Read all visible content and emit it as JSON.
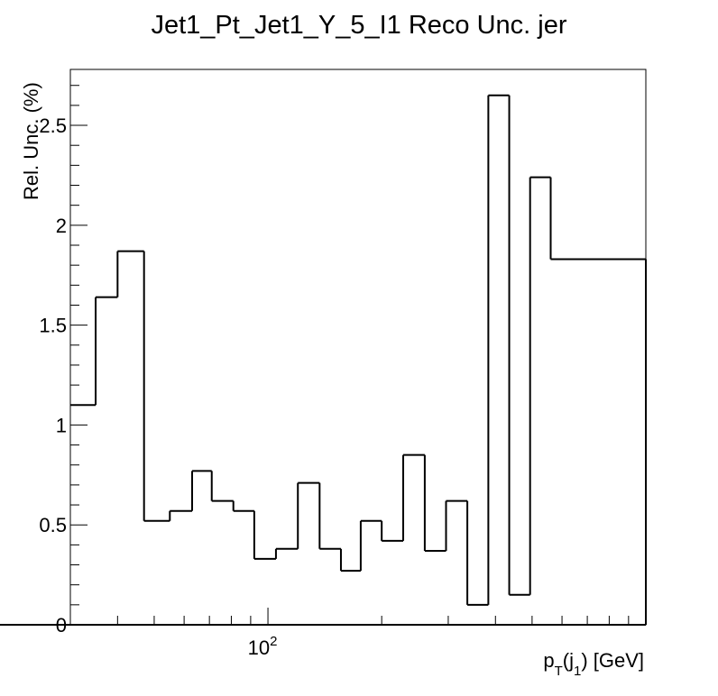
{
  "chart_data": {
    "type": "histogram",
    "title": "Jet1_Pt_Jet1_Y_5_I1 Reco Unc. jer",
    "ylabel": "Rel. Unc. (%)",
    "xlabel": {
      "p": "p",
      "sub1": "T",
      "mid": "(j",
      "sub2": "1",
      "end": ") [GeV]"
    },
    "x_scale": "log",
    "xlim": [
      30,
      1000
    ],
    "ylim": [
      0,
      2.78
    ],
    "y_ticks": [
      {
        "v": 0,
        "label": "0"
      },
      {
        "v": 0.5,
        "label": "0.5"
      },
      {
        "v": 1,
        "label": "1"
      },
      {
        "v": 1.5,
        "label": "1.5"
      },
      {
        "v": 2,
        "label": "2"
      },
      {
        "v": 2.5,
        "label": "2.5"
      }
    ],
    "x_major_tick": {
      "v": 100,
      "label": "10",
      "exp": "2"
    },
    "x_minor_ticks": [
      40,
      50,
      60,
      70,
      80,
      90,
      200,
      300,
      400,
      500,
      600,
      700,
      800,
      900
    ],
    "bin_edges": [
      30,
      35,
      40,
      47,
      55,
      63,
      71,
      81,
      92,
      105,
      120,
      137,
      156,
      176,
      200,
      228,
      260,
      296,
      337,
      383,
      435,
      494,
      560,
      1000
    ],
    "values": [
      1.1,
      1.64,
      1.87,
      0.52,
      0.57,
      0.77,
      0.62,
      0.57,
      0.33,
      0.38,
      0.71,
      0.38,
      0.27,
      0.52,
      0.42,
      0.85,
      0.37,
      0.62,
      0.1,
      2.65,
      0.15,
      2.24,
      1.83,
      0.0
    ],
    "line_color": "#000000"
  }
}
